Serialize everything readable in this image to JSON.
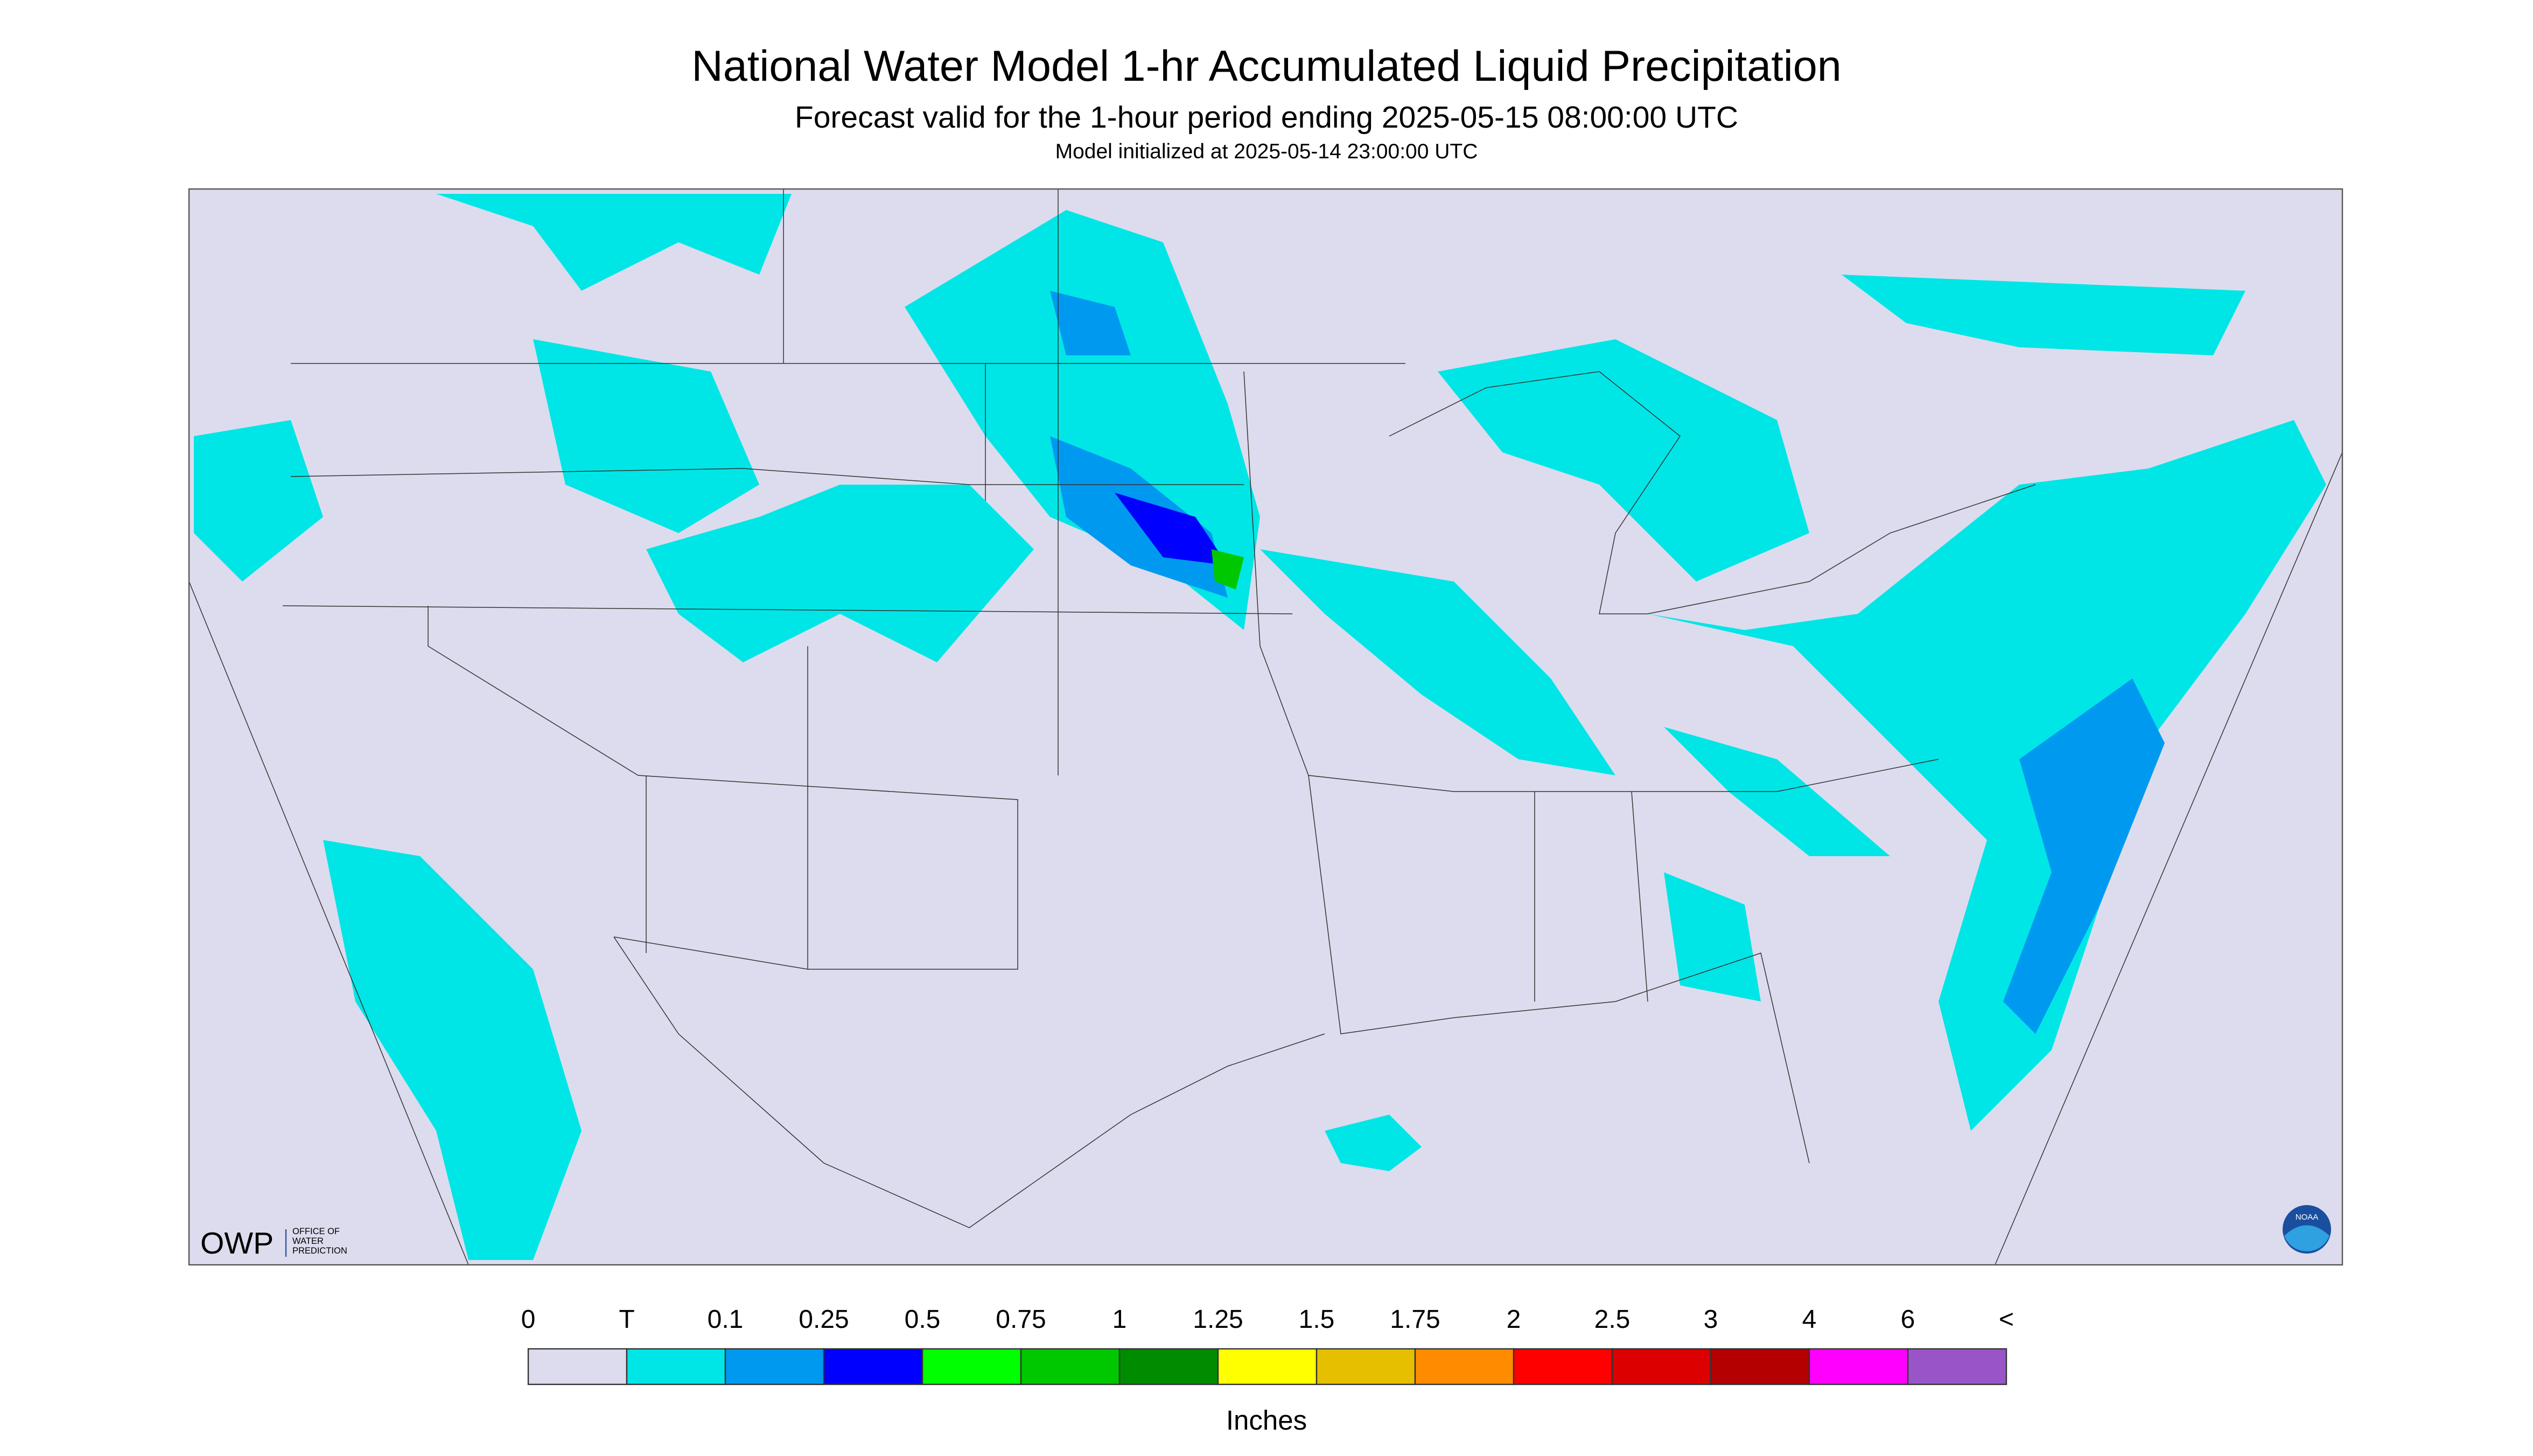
{
  "header": {
    "title": "National Water Model 1-hr Accumulated Liquid Precipitation",
    "subtitle": "Forecast valid for the 1-hour period ending 2025-05-15 08:00:00 UTC",
    "initialized": "Model initialized at 2025-05-14 23:00:00 UTC"
  },
  "legend": {
    "labels": [
      "0",
      "T",
      "0.1",
      "0.25",
      "0.5",
      "0.75",
      "1",
      "1.25",
      "1.5",
      "1.75",
      "2",
      "2.5",
      "3",
      "4",
      "6",
      "<"
    ],
    "colors": [
      "#dcdcee",
      "#00e6e6",
      "#0099f0",
      "#0000ff",
      "#00ff00",
      "#00c800",
      "#008c00",
      "#ffff00",
      "#e6c000",
      "#ff8c00",
      "#ff0000",
      "#dc0000",
      "#b40000",
      "#ff00ff",
      "#9955c8"
    ],
    "units": "Inches"
  },
  "logos": {
    "owp": "OWP",
    "owp_name": [
      "OFFICE OF",
      "WATER",
      "PREDICTION"
    ],
    "noaa": "NOAA"
  }
}
